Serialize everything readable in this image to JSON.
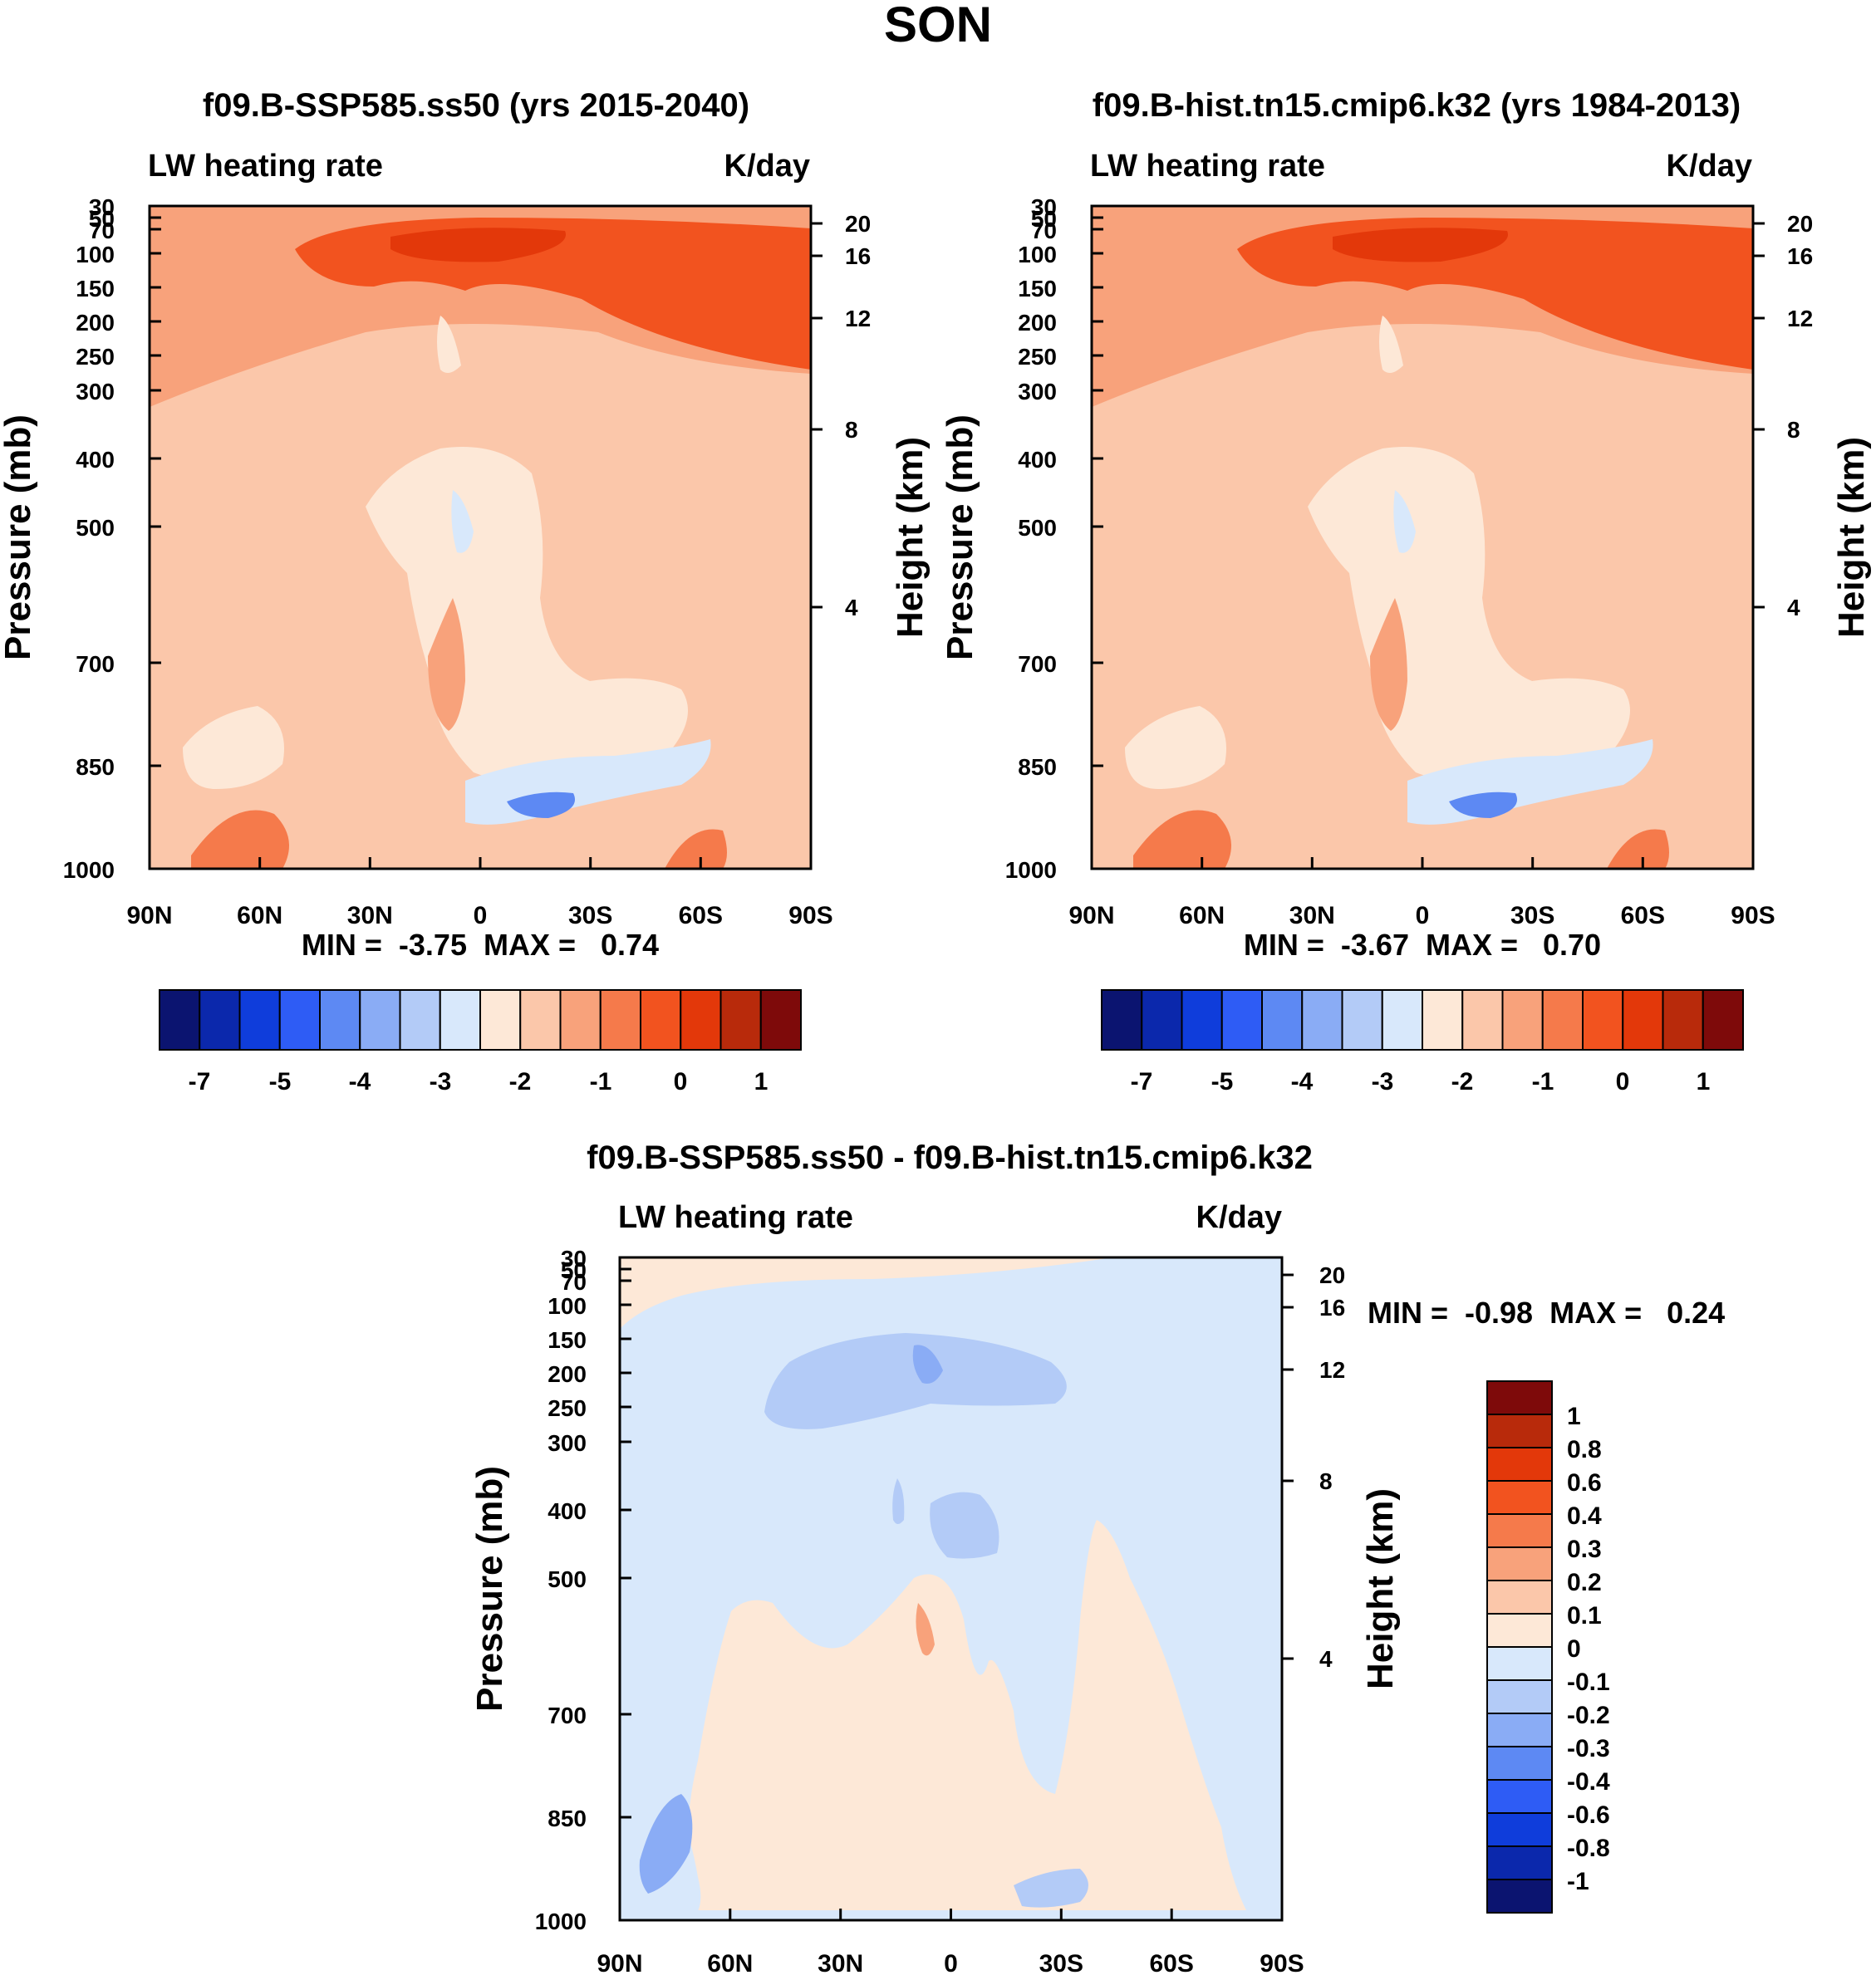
{
  "figure": {
    "title": "SON"
  },
  "chart_data": [
    {
      "type": "heatmap",
      "title": "f09.B-SSP585.ss50 (yrs 2015-2040)",
      "left_label": "LW heating rate",
      "right_label": "K/day",
      "ylabel": "Pressure (mb)",
      "ylabel_right": "Height (km)",
      "xticks": [
        "90N",
        "60N",
        "30N",
        "0",
        "30S",
        "60S",
        "90S"
      ],
      "pressure_ticks": [
        "30",
        "50",
        "70",
        "100",
        "150",
        "200",
        "250",
        "300",
        "400",
        "500",
        "700",
        "850",
        "1000"
      ],
      "height_ticks": [
        "20",
        "16",
        "12",
        "8",
        "4"
      ],
      "min_max": "MIN =  -3.75  MAX =   0.74",
      "colorbar": {
        "orientation": "horizontal",
        "labels": [
          "-7",
          "-5",
          "-4",
          "-3",
          "-2",
          "-1",
          "0",
          "1"
        ],
        "colors": [
          "#0b1470",
          "#0b28ac",
          "#0f3ddb",
          "#2e5cf5",
          "#5d89f3",
          "#8aacf5",
          "#b3cbf7",
          "#d8e8fb",
          "#fde8d7",
          "#fbc7aa",
          "#f8a27b",
          "#f57a4b",
          "#f2531f",
          "#e3380a",
          "#b82a0b",
          "#7e0a0a"
        ]
      },
      "field": {
        "base": 9,
        "upper_band": 11,
        "core": 12,
        "weak": 8,
        "minimum_patch": 5
      }
    },
    {
      "type": "heatmap",
      "title": "f09.B-hist.tn15.cmip6.k32 (yrs 1984-2013)",
      "left_label": "LW heating rate",
      "right_label": "K/day",
      "ylabel": "Pressure (mb)",
      "ylabel_right": "Height (km)",
      "xticks": [
        "90N",
        "60N",
        "30N",
        "0",
        "30S",
        "60S",
        "90S"
      ],
      "pressure_ticks": [
        "30",
        "50",
        "70",
        "100",
        "150",
        "200",
        "250",
        "300",
        "400",
        "500",
        "700",
        "850",
        "1000"
      ],
      "height_ticks": [
        "20",
        "16",
        "12",
        "8",
        "4"
      ],
      "min_max": "MIN =  -3.67  MAX =   0.70",
      "colorbar": {
        "orientation": "horizontal",
        "labels": [
          "-7",
          "-5",
          "-4",
          "-3",
          "-2",
          "-1",
          "0",
          "1"
        ],
        "colors": [
          "#0b1470",
          "#0b28ac",
          "#0f3ddb",
          "#2e5cf5",
          "#5d89f3",
          "#8aacf5",
          "#b3cbf7",
          "#d8e8fb",
          "#fde8d7",
          "#fbc7aa",
          "#f8a27b",
          "#f57a4b",
          "#f2531f",
          "#e3380a",
          "#b82a0b",
          "#7e0a0a"
        ]
      },
      "field": {
        "base": 9,
        "upper_band": 11,
        "core": 12,
        "weak": 8,
        "minimum_patch": 5
      }
    },
    {
      "type": "heatmap",
      "title": "f09.B-SSP585.ss50 - f09.B-hist.tn15.cmip6.k32",
      "left_label": "LW heating rate",
      "right_label": "K/day",
      "ylabel": "Pressure (mb)",
      "ylabel_right": "Height (km)",
      "xticks": [
        "90N",
        "60N",
        "30N",
        "0",
        "30S",
        "60S",
        "90S"
      ],
      "pressure_ticks": [
        "30",
        "50",
        "70",
        "100",
        "150",
        "200",
        "250",
        "300",
        "400",
        "500",
        "700",
        "850",
        "1000"
      ],
      "height_ticks": [
        "20",
        "16",
        "12",
        "8",
        "4"
      ],
      "min_max": "MIN =  -0.98  MAX =   0.24",
      "colorbar": {
        "orientation": "vertical",
        "labels": [
          "1",
          "0.8",
          "0.6",
          "0.4",
          "0.3",
          "0.2",
          "0.1",
          "0",
          "-0.1",
          "-0.2",
          "-0.3",
          "-0.4",
          "-0.6",
          "-0.8",
          "-1"
        ],
        "colors": [
          "#7e0a0a",
          "#b82a0b",
          "#e3380a",
          "#f2531f",
          "#f57a4b",
          "#f8a27b",
          "#fbc7aa",
          "#fde8d7",
          "#d8e8fb",
          "#b3cbf7",
          "#8aacf5",
          "#5d89f3",
          "#2e5cf5",
          "#0f3ddb",
          "#0b28ac",
          "#0b1470"
        ]
      },
      "field": {
        "base": 7,
        "positive": 8,
        "negative": 6,
        "strong_negative": 5
      }
    }
  ]
}
